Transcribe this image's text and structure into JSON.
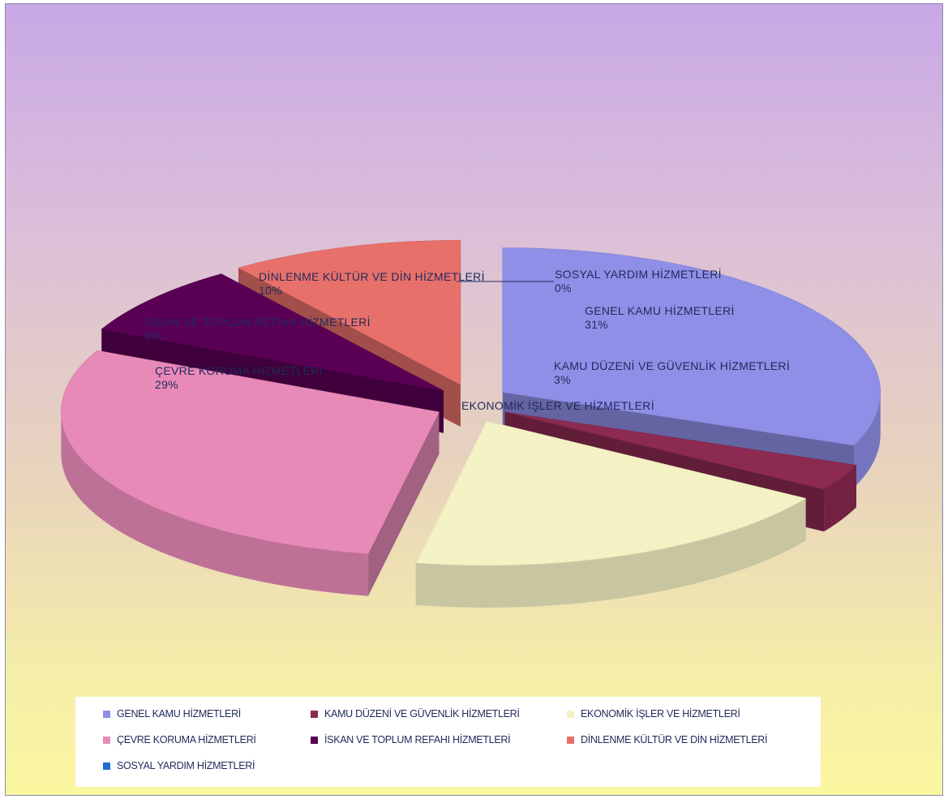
{
  "chart_data": {
    "type": "pie",
    "style": "3d-exploded",
    "slices": [
      {
        "name": "GENEL KAMU HİZMETLERİ",
        "value": 31,
        "percent_label": "31%",
        "color": "#8f8fe8"
      },
      {
        "name": "KAMU DÜZENİ VE GÜVENLİK HİZMETLERİ",
        "value": 3,
        "percent_label": "3%",
        "color": "#8c2a52"
      },
      {
        "name": "EKONOMİK İŞLER VE HİZMETLERİ",
        "value": 19,
        "percent_label": "",
        "color": "#f4f2c4"
      },
      {
        "name": "ÇEVRE KORUMA HİZMETLERİ",
        "value": 29,
        "percent_label": "29%",
        "color": "#e88ab8"
      },
      {
        "name": "İSKAN VE TOPLUM REFAHI HİZMETLERİ",
        "value": 8,
        "percent_label": "8%",
        "color": "#5a0054"
      },
      {
        "name": "DİNLENME KÜLTÜR VE DİN HİZMETLERİ",
        "value": 10,
        "percent_label": "10%",
        "color": "#e8706a"
      },
      {
        "name": "SOSYAL YARDIM HİZMETLERİ",
        "value": 0,
        "percent_label": "0%",
        "color": "#1a6fcf"
      }
    ],
    "legend": {
      "placement": "bottom",
      "items": [
        {
          "label": "GENEL KAMU HİZMETLERİ",
          "color": "#8f8fe8"
        },
        {
          "label": "KAMU DÜZENİ VE GÜVENLİK HİZMETLERİ",
          "color": "#8c2a52"
        },
        {
          "label": "EKONOMİK İŞLER VE HİZMETLERİ",
          "color": "#f4f2c4"
        },
        {
          "label": "ÇEVRE KORUMA HİZMETLERİ",
          "color": "#e88ab8"
        },
        {
          "label": "İSKAN VE TOPLUM REFAHI HİZMETLERİ",
          "color": "#5a0054"
        },
        {
          "label": "DİNLENME KÜLTÜR VE DİN HİZMETLERİ",
          "color": "#e8706a"
        },
        {
          "label": "SOSYAL YARDIM HİZMETLERİ",
          "color": "#1a6fcf"
        }
      ]
    }
  }
}
